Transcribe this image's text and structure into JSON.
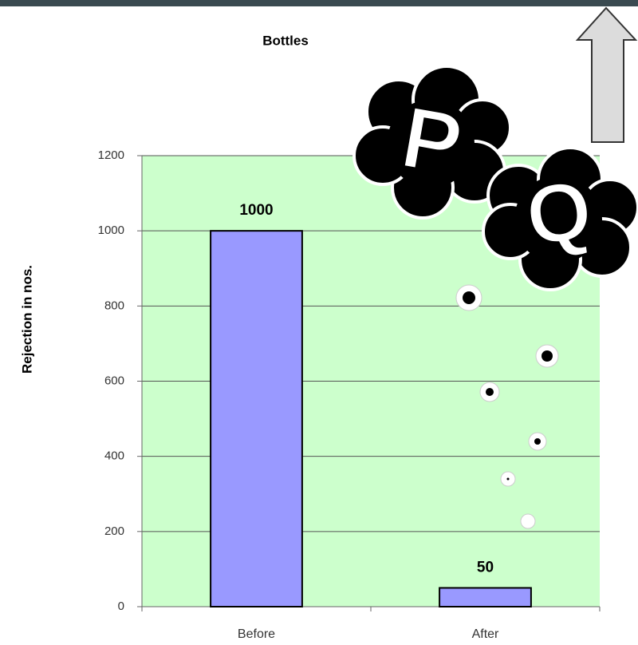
{
  "chart_data": {
    "type": "bar",
    "title": "Bottles",
    "y_label": "Rejection in nos.",
    "categories": [
      "Before",
      "After"
    ],
    "values": [
      1000,
      50
    ],
    "color": "#9999ff",
    "ylim": [
      0,
      1200
    ],
    "yticks": [
      0,
      200,
      400,
      600,
      800,
      1000,
      1200
    ],
    "grid": true,
    "annotations": [
      "P",
      "Q"
    ]
  }
}
